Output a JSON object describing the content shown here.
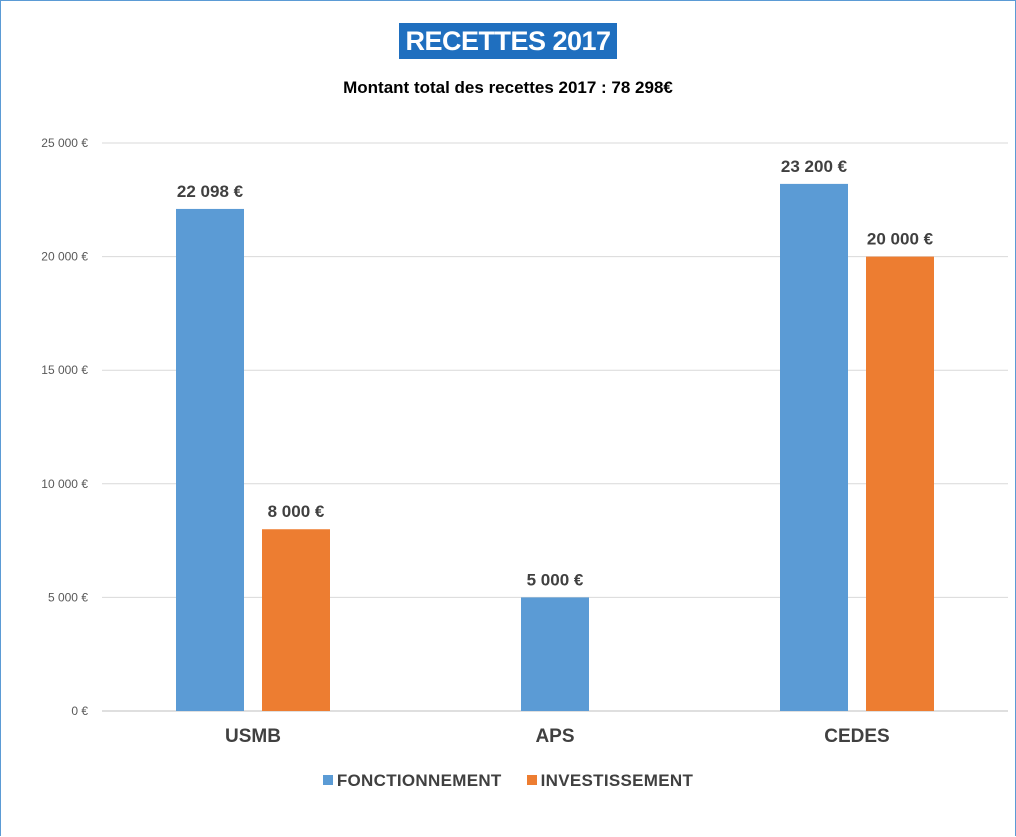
{
  "chart_data": {
    "type": "bar",
    "title": "RECETTES 2017",
    "subtitle": "Montant total des recettes 2017 : 78 298€",
    "categories": [
      "USMB",
      "APS",
      "CEDES"
    ],
    "series": [
      {
        "name": "FONCTIONNEMENT",
        "color": "#5b9bd5",
        "values": [
          22098,
          5000,
          23200
        ],
        "labels": [
          "22 098 €",
          "5 000 €",
          "23 200 €"
        ]
      },
      {
        "name": "INVESTISSEMENT",
        "color": "#ed7d31",
        "values": [
          8000,
          null,
          20000
        ],
        "labels": [
          "8 000 €",
          "",
          "20 000 €"
        ]
      }
    ],
    "yticks": [
      0,
      5000,
      10000,
      15000,
      20000,
      25000
    ],
    "ytick_labels": [
      "0 €",
      "5 000 €",
      "10 000 €",
      "15 000 €",
      "20 000 €",
      "25 000 €"
    ],
    "ylim": [
      0,
      25000
    ],
    "grid": true,
    "legend_position": "bottom"
  }
}
